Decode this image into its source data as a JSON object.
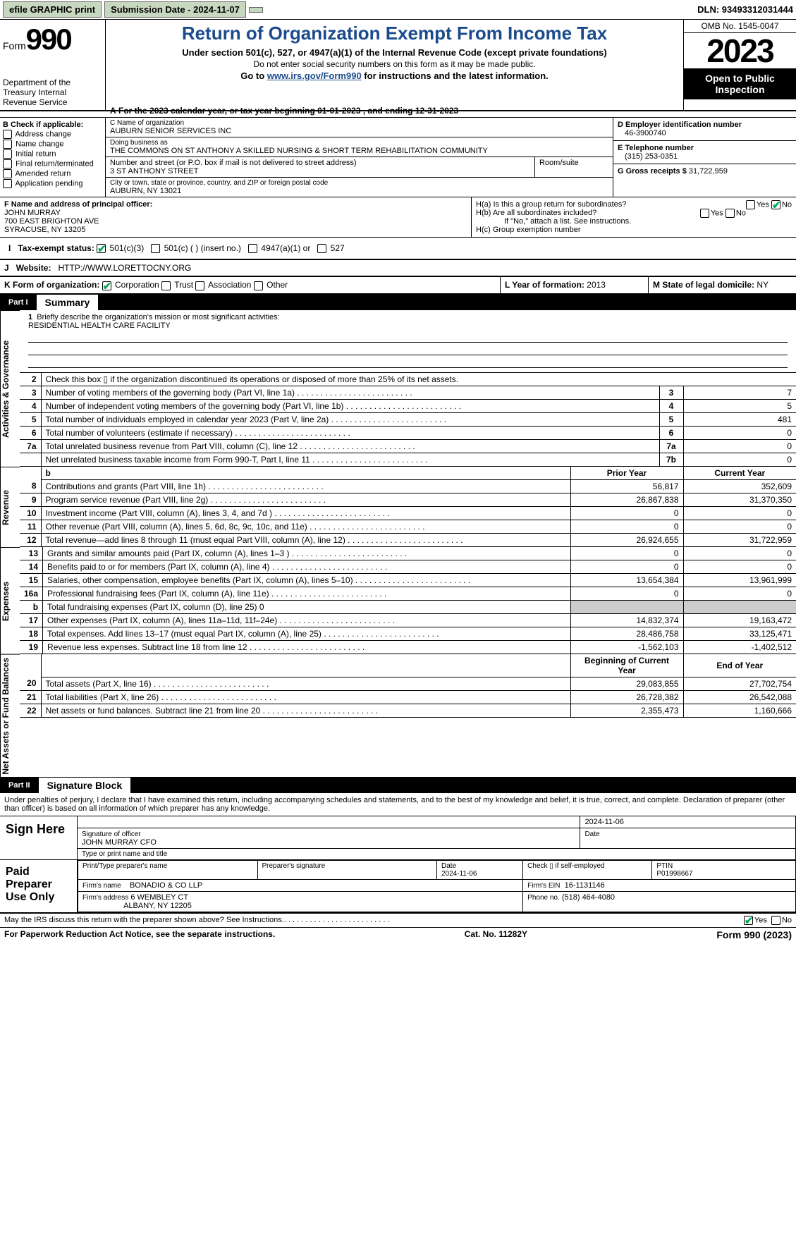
{
  "topbar": {
    "efile": "efile GRAPHIC print",
    "submission": "Submission Date - 2024-11-07",
    "dln": "DLN: 93493312031444"
  },
  "header": {
    "form_label": "Form",
    "form_no": "990",
    "dept": "Department of the Treasury Internal Revenue Service",
    "title": "Return of Organization Exempt From Income Tax",
    "sub1": "Under section 501(c), 527, or 4947(a)(1) of the Internal Revenue Code (except private foundations)",
    "sub2": "Do not enter social security numbers on this form as it may be made public.",
    "sub3_pre": "Go to ",
    "sub3_link": "www.irs.gov/Form990",
    "sub3_post": " for instructions and the latest information.",
    "omb": "OMB No. 1545-0047",
    "year": "2023",
    "open": "Open to Public Inspection"
  },
  "taxyear": "For the 2023 calendar year, or tax year beginning 01-01-2023   , and ending 12-31-2023",
  "boxB": {
    "label": "B Check if applicable:",
    "items": [
      "Address change",
      "Name change",
      "Initial return",
      "Final return/terminated",
      "Amended return",
      "Application pending"
    ]
  },
  "boxC": {
    "name_label": "C Name of organization",
    "name": "AUBURN SENIOR SERVICES INC",
    "dba_label": "Doing business as",
    "dba": "THE COMMONS ON ST ANTHONY A SKILLED NURSING & SHORT TERM REHABILITATION COMMUNITY",
    "addr_label": "Number and street (or P.O. box if mail is not delivered to street address)",
    "addr": "3 ST ANTHONY STREET",
    "room_label": "Room/suite",
    "city_label": "City or town, state or province, country, and ZIP or foreign postal code",
    "city": "AUBURN, NY  13021"
  },
  "boxD": {
    "label": "D Employer identification number",
    "val": "46-3900740"
  },
  "boxE": {
    "label": "E Telephone number",
    "val": "(315) 253-0351"
  },
  "boxG": {
    "label": "G Gross receipts $",
    "val": "31,722,959"
  },
  "boxF": {
    "label": "F  Name and address of principal officer:",
    "name": "JOHN MURRAY",
    "addr1": "700 EAST BRIGHTON AVE",
    "addr2": "SYRACUSE, NY  13205"
  },
  "boxH": {
    "a": "H(a)  Is this a group return for subordinates?",
    "b": "H(b)  Are all subordinates included?",
    "b_note": "If \"No,\" attach a list. See instructions.",
    "c": "H(c)  Group exemption number"
  },
  "taxexempt": {
    "label": "Tax-exempt status:",
    "opts": [
      "501(c)(3)",
      "501(c) (  ) (insert no.)",
      "4947(a)(1) or",
      "527"
    ]
  },
  "boxJ": {
    "label": "Website:",
    "val": "HTTP://WWW.LORETTOCNY.ORG"
  },
  "boxK": {
    "label": "K Form of organization:",
    "opts": [
      "Corporation",
      "Trust",
      "Association",
      "Other"
    ]
  },
  "boxL": {
    "label": "L Year of formation:",
    "val": "2013"
  },
  "boxM": {
    "label": "M State of legal domicile:",
    "val": "NY"
  },
  "part1": {
    "num": "Part I",
    "title": "Summary"
  },
  "mission": {
    "label": "Briefly describe the organization's mission or most significant activities:",
    "val": "RESIDENTIAL HEALTH CARE FACILITY"
  },
  "side_labels": {
    "ag": "Activities & Governance",
    "rev": "Revenue",
    "exp": "Expenses",
    "net": "Net Assets or Fund Balances"
  },
  "lines_gov": [
    {
      "n": "2",
      "d": "Check this box ▯ if the organization discontinued its operations or disposed of more than 25% of its net assets.",
      "single": true
    },
    {
      "n": "3",
      "d": "Number of voting members of the governing body (Part VI, line 1a)",
      "box": "3",
      "v": "7"
    },
    {
      "n": "4",
      "d": "Number of independent voting members of the governing body (Part VI, line 1b)",
      "box": "4",
      "v": "5"
    },
    {
      "n": "5",
      "d": "Total number of individuals employed in calendar year 2023 (Part V, line 2a)",
      "box": "5",
      "v": "481"
    },
    {
      "n": "6",
      "d": "Total number of volunteers (estimate if necessary)",
      "box": "6",
      "v": "0"
    },
    {
      "n": "7a",
      "d": "Total unrelated business revenue from Part VIII, column (C), line 12",
      "box": "7a",
      "v": "0"
    },
    {
      "n": "",
      "d": "Net unrelated business taxable income from Form 990-T, Part I, line 11",
      "box": "7b",
      "v": "0"
    }
  ],
  "col_hdrs": {
    "prior": "Prior Year",
    "current": "Current Year",
    "begin": "Beginning of Current Year",
    "end": "End of Year"
  },
  "lines_b_hdr": "b",
  "lines_rev": [
    {
      "n": "8",
      "d": "Contributions and grants (Part VIII, line 1h)",
      "p": "56,817",
      "c": "352,609"
    },
    {
      "n": "9",
      "d": "Program service revenue (Part VIII, line 2g)",
      "p": "26,867,838",
      "c": "31,370,350"
    },
    {
      "n": "10",
      "d": "Investment income (Part VIII, column (A), lines 3, 4, and 7d )",
      "p": "0",
      "c": "0"
    },
    {
      "n": "11",
      "d": "Other revenue (Part VIII, column (A), lines 5, 6d, 8c, 9c, 10c, and 11e)",
      "p": "0",
      "c": "0"
    },
    {
      "n": "12",
      "d": "Total revenue—add lines 8 through 11 (must equal Part VIII, column (A), line 12)",
      "p": "26,924,655",
      "c": "31,722,959"
    }
  ],
  "lines_exp": [
    {
      "n": "13",
      "d": "Grants and similar amounts paid (Part IX, column (A), lines 1–3 )",
      "p": "0",
      "c": "0"
    },
    {
      "n": "14",
      "d": "Benefits paid to or for members (Part IX, column (A), line 4)",
      "p": "0",
      "c": "0"
    },
    {
      "n": "15",
      "d": "Salaries, other compensation, employee benefits (Part IX, column (A), lines 5–10)",
      "p": "13,654,384",
      "c": "13,961,999"
    },
    {
      "n": "16a",
      "d": "Professional fundraising fees (Part IX, column (A), line 11e)",
      "p": "0",
      "c": "0"
    },
    {
      "n": "b",
      "d": "Total fundraising expenses (Part IX, column (D), line 25) 0",
      "shade": true
    },
    {
      "n": "17",
      "d": "Other expenses (Part IX, column (A), lines 11a–11d, 11f–24e)",
      "p": "14,832,374",
      "c": "19,163,472"
    },
    {
      "n": "18",
      "d": "Total expenses. Add lines 13–17 (must equal Part IX, column (A), line 25)",
      "p": "28,486,758",
      "c": "33,125,471"
    },
    {
      "n": "19",
      "d": "Revenue less expenses. Subtract line 18 from line 12",
      "p": "-1,562,103",
      "c": "-1,402,512"
    }
  ],
  "lines_net": [
    {
      "n": "20",
      "d": "Total assets (Part X, line 16)",
      "p": "29,083,855",
      "c": "27,702,754"
    },
    {
      "n": "21",
      "d": "Total liabilities (Part X, line 26)",
      "p": "26,728,382",
      "c": "26,542,088"
    },
    {
      "n": "22",
      "d": "Net assets or fund balances. Subtract line 21 from line 20",
      "p": "2,355,473",
      "c": "1,160,666"
    }
  ],
  "part2": {
    "num": "Part II",
    "title": "Signature Block"
  },
  "sig_declare": "Under penalties of perjury, I declare that I have examined this return, including accompanying schedules and statements, and to the best of my knowledge and belief, it is true, correct, and complete. Declaration of preparer (other than officer) is based on all information of which preparer has any knowledge.",
  "sign_here": {
    "label": "Sign Here",
    "date": "2024-11-06",
    "sig_label": "Signature of officer",
    "name": "JOHN MURRAY CFO",
    "type_label": "Type or print name and title",
    "date_label": "Date"
  },
  "preparer": {
    "label": "Paid Preparer Use Only",
    "headers": [
      "Print/Type preparer's name",
      "Preparer's signature",
      "Date",
      "Check ▯ if self-employed",
      "PTIN"
    ],
    "date": "2024-11-06",
    "ptin": "P01998667",
    "firm_name_label": "Firm's name",
    "firm_name": "BONADIO & CO LLP",
    "firm_ein_label": "Firm's EIN",
    "firm_ein": "16-1131146",
    "firm_addr_label": "Firm's address",
    "firm_addr1": "6 WEMBLEY CT",
    "firm_addr2": "ALBANY, NY  12205",
    "phone_label": "Phone no.",
    "phone": "(518) 464-4080"
  },
  "discuss": "May the IRS discuss this return with the preparer shown above? See Instructions.",
  "footer": {
    "left": "For Paperwork Reduction Act Notice, see the separate instructions.",
    "mid": "Cat. No. 11282Y",
    "right_pre": "Form ",
    "right_form": "990",
    "right_post": " (2023)"
  }
}
